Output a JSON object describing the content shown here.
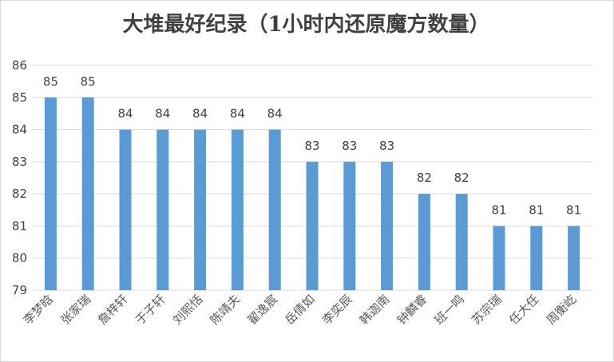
{
  "chart_data": {
    "type": "bar",
    "title": "大堆最好纪录（1小时内还原魔方数量）",
    "xlabel": "",
    "ylabel": "",
    "categories": [
      "李梦晗",
      "张家瑞",
      "詹梓轩",
      "于子轩",
      "刘熙恬",
      "陈靖夫",
      "翟逸宸",
      "岳倩如",
      "李奕辰",
      "韩迦南",
      "钟麟睿",
      "班一鸣",
      "苏宗瑞",
      "任大任",
      "周衡屹"
    ],
    "values": [
      85,
      85,
      84,
      84,
      84,
      84,
      84,
      83,
      83,
      83,
      82,
      82,
      81,
      81,
      81
    ],
    "ylim": [
      79,
      86
    ],
    "yticks": [
      "79",
      "80",
      "81",
      "82",
      "83",
      "84",
      "85",
      "86"
    ],
    "grid": true,
    "legend": "none",
    "bar_color": "#5b9bd5",
    "grid_color": "#d9d9d9"
  }
}
